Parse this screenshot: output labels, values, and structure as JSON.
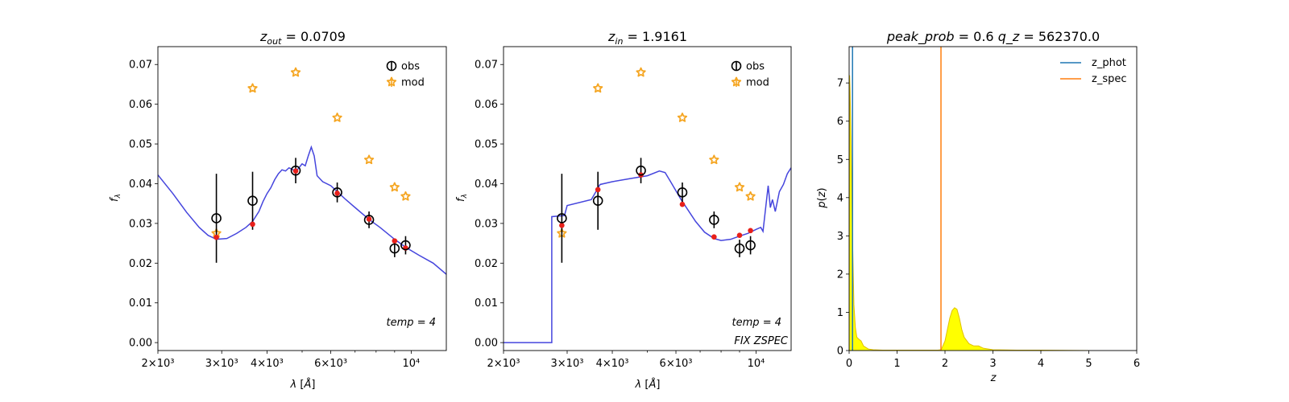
{
  "chart_data": [
    {
      "type": "scatter",
      "title": "z_out = 0.0709",
      "xlabel": "λ [Å]",
      "ylabel": "f_λ",
      "xscale": "log",
      "xlim": [
        2000,
        12500
      ],
      "ylim": [
        -0.002,
        0.0745
      ],
      "xticks": [
        {
          "value": 2000,
          "label": "2×10³"
        },
        {
          "value": 3000,
          "label": "3×10³"
        },
        {
          "value": 4000,
          "label": "4×10³"
        },
        {
          "value": 6000,
          "label": "6×10³"
        },
        {
          "value": 10000,
          "label": "10⁴"
        }
      ],
      "yticks": [
        "0.00",
        "0.01",
        "0.02",
        "0.03",
        "0.04",
        "0.05",
        "0.06",
        "0.07"
      ],
      "legend": {
        "position": "top-right",
        "entries": [
          "obs",
          "mod"
        ]
      },
      "annotations": [
        "temp = 4"
      ],
      "series": [
        {
          "name": "obs",
          "kind": "errorbar",
          "color": "#000000",
          "x": [
            2900,
            3650,
            4800,
            6250,
            7650,
            9000,
            9650
          ],
          "y": [
            0.0313,
            0.0357,
            0.0433,
            0.0378,
            0.0309,
            0.0237,
            0.0245
          ],
          "yerr": [
            0.0112,
            0.0073,
            0.0032,
            0.0025,
            0.0021,
            0.0022,
            0.0023
          ]
        },
        {
          "name": "mod",
          "kind": "star",
          "color": "#f5a623",
          "x": [
            2900,
            3650,
            4800,
            6250,
            7650,
            9000,
            9650
          ],
          "y": [
            0.0275,
            0.064,
            0.068,
            0.0566,
            0.046,
            0.0391,
            0.0368
          ]
        },
        {
          "kind": "point",
          "color": "#e8201a",
          "x": [
            2900,
            3650,
            4800,
            6250,
            7650,
            9000,
            9650
          ],
          "y": [
            0.0265,
            0.0298,
            0.0432,
            0.0376,
            0.0311,
            0.0256,
            0.0238
          ]
        },
        {
          "kind": "line",
          "color": "#3b3bdb",
          "x": [
            2000,
            2200,
            2400,
            2600,
            2750,
            2900,
            3100,
            3300,
            3500,
            3650,
            3800,
            3900,
            4000,
            4100,
            4200,
            4300,
            4400,
            4500,
            4600,
            4700,
            4800,
            4900,
            5000,
            5100,
            5200,
            5300,
            5400,
            5500,
            5700,
            6000,
            6250,
            6600,
            7000,
            7650,
            8200,
            9000,
            9650,
            10500,
            11500,
            12500
          ],
          "y": [
            0.0422,
            0.0375,
            0.0328,
            0.029,
            0.027,
            0.026,
            0.0262,
            0.0275,
            0.029,
            0.0305,
            0.033,
            0.0355,
            0.0375,
            0.039,
            0.041,
            0.0425,
            0.0435,
            0.0432,
            0.044,
            0.0436,
            0.043,
            0.044,
            0.045,
            0.0445,
            0.047,
            0.0492,
            0.047,
            0.042,
            0.0405,
            0.0395,
            0.038,
            0.036,
            0.034,
            0.031,
            0.029,
            0.026,
            0.024,
            0.022,
            0.02,
            0.0172
          ]
        }
      ]
    },
    {
      "type": "scatter",
      "title": "z_in = 1.9161",
      "xlabel": "λ [Å]",
      "ylabel": "f_λ",
      "xscale": "log",
      "xlim": [
        2000,
        12500
      ],
      "ylim": [
        -0.002,
        0.0745
      ],
      "xticks": [
        {
          "value": 2000,
          "label": "2×10³"
        },
        {
          "value": 3000,
          "label": "3×10³"
        },
        {
          "value": 4000,
          "label": "4×10³"
        },
        {
          "value": 6000,
          "label": "6×10³"
        },
        {
          "value": 10000,
          "label": "10⁴"
        }
      ],
      "yticks": [
        "0.00",
        "0.01",
        "0.02",
        "0.03",
        "0.04",
        "0.05",
        "0.06",
        "0.07"
      ],
      "legend": {
        "position": "top-right",
        "entries": [
          "obs",
          "mod"
        ]
      },
      "annotations": [
        "temp = 4",
        "FIX ZSPEC"
      ],
      "series": [
        {
          "name": "obs",
          "kind": "errorbar",
          "color": "#000000",
          "x": [
            2900,
            3650,
            4800,
            6250,
            7650,
            9000,
            9650
          ],
          "y": [
            0.0313,
            0.0357,
            0.0433,
            0.0378,
            0.0309,
            0.0237,
            0.0245
          ],
          "yerr": [
            0.0112,
            0.0073,
            0.0032,
            0.0025,
            0.0021,
            0.0022,
            0.0023
          ]
        },
        {
          "name": "mod",
          "kind": "star",
          "color": "#f5a623",
          "x": [
            2900,
            3650,
            4800,
            6250,
            7650,
            9000,
            9650
          ],
          "y": [
            0.0275,
            0.064,
            0.068,
            0.0566,
            0.046,
            0.0391,
            0.0368
          ]
        },
        {
          "kind": "point",
          "color": "#e8201a",
          "x": [
            2900,
            3650,
            4800,
            6250,
            7650,
            9000,
            9650
          ],
          "y": [
            0.0295,
            0.0385,
            0.0422,
            0.0348,
            0.0266,
            0.027,
            0.0282
          ]
        },
        {
          "kind": "line",
          "color": "#3b3bdb",
          "x": [
            2000,
            2720,
            2720,
            2950,
            3000,
            3500,
            3700,
            4000,
            4500,
            5000,
            5400,
            5600,
            5800,
            6200,
            6800,
            7200,
            7650,
            8000,
            8500,
            9000,
            9500,
            10000,
            10300,
            10450,
            10600,
            10800,
            10950,
            11100,
            11300,
            11600,
            11900,
            12200,
            12500
          ],
          "y": [
            0.0,
            0.0,
            0.0317,
            0.032,
            0.0345,
            0.036,
            0.0398,
            0.0405,
            0.0413,
            0.042,
            0.0432,
            0.0428,
            0.0405,
            0.036,
            0.0305,
            0.0278,
            0.0262,
            0.0257,
            0.026,
            0.0268,
            0.0275,
            0.0285,
            0.029,
            0.028,
            0.033,
            0.0395,
            0.034,
            0.036,
            0.033,
            0.038,
            0.0398,
            0.0425,
            0.044
          ]
        }
      ]
    },
    {
      "type": "area",
      "title": "peak_prob = 0.6      q_z = 562370.0",
      "xlabel": "z",
      "ylabel": "p(z)",
      "xlim": [
        0,
        6
      ],
      "ylim": [
        0,
        7.95
      ],
      "xticks": [
        "0",
        "1",
        "2",
        "3",
        "4",
        "5",
        "6"
      ],
      "yticks": [
        "0",
        "1",
        "2",
        "3",
        "4",
        "5",
        "6",
        "7"
      ],
      "legend": {
        "position": "top-right",
        "entries": [
          "z_phot",
          "z_spec"
        ]
      },
      "vlines": [
        {
          "name": "z_phot",
          "x": 0.0709,
          "color": "#1f77b4"
        },
        {
          "name": "z_spec",
          "x": 1.9161,
          "color": "#ff7f0e"
        }
      ],
      "pdf": {
        "fill": "#ffff00",
        "edge": "#e0c000",
        "z": [
          0.0,
          0.01,
          0.02,
          0.04,
          0.07,
          0.1,
          0.13,
          0.16,
          0.2,
          0.25,
          0.3,
          0.4,
          0.5,
          0.7,
          1.0,
          1.5,
          1.85,
          1.92,
          2.0,
          2.05,
          2.1,
          2.15,
          2.2,
          2.25,
          2.3,
          2.35,
          2.4,
          2.5,
          2.6,
          2.7,
          2.8,
          3.0,
          3.5,
          4.0,
          5.0
        ],
        "p": [
          0.5,
          7.2,
          6.8,
          5.5,
          3.0,
          1.2,
          0.6,
          0.35,
          0.3,
          0.25,
          0.12,
          0.04,
          0.02,
          0.01,
          0.01,
          0.01,
          0.01,
          0.02,
          0.25,
          0.55,
          0.85,
          1.05,
          1.12,
          1.08,
          0.85,
          0.55,
          0.35,
          0.18,
          0.12,
          0.12,
          0.06,
          0.02,
          0.01,
          0.01,
          0.0
        ]
      }
    }
  ]
}
